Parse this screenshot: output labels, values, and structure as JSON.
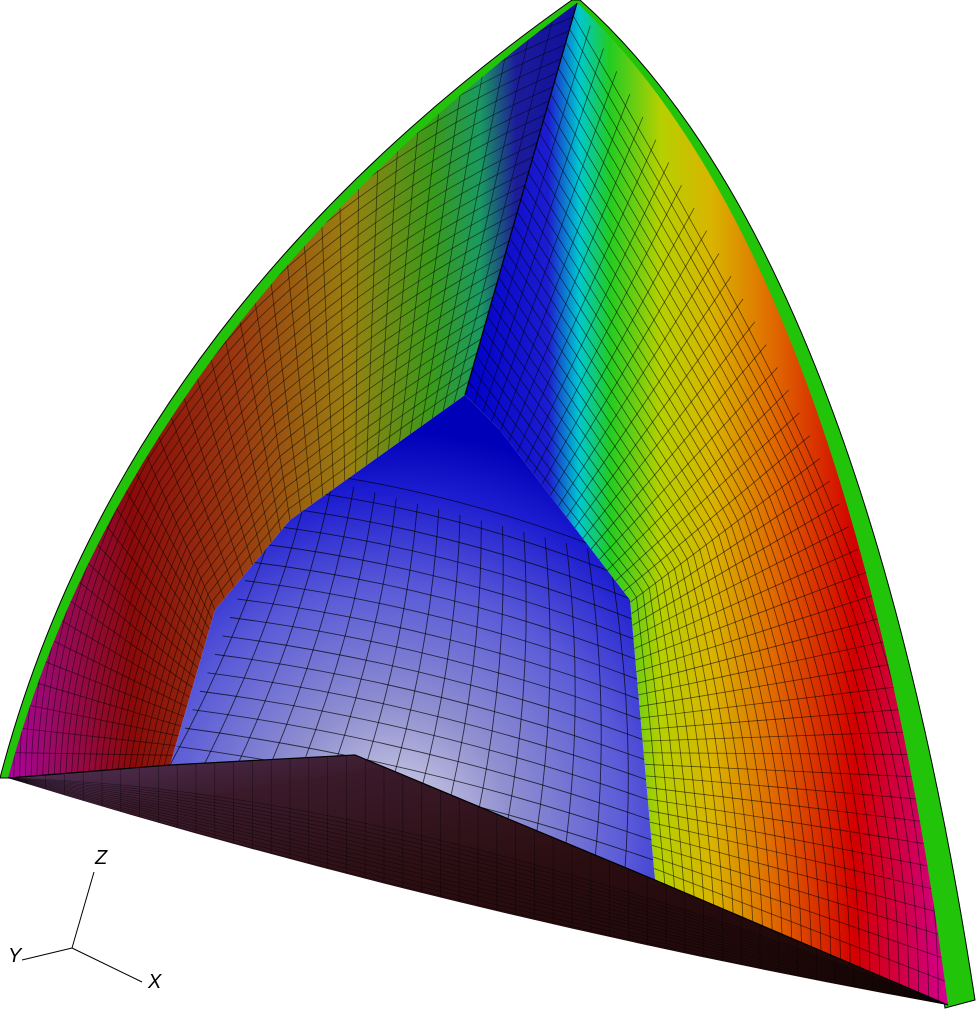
{
  "axes": {
    "x_label": "X",
    "y_label": "Y",
    "z_label": "Z"
  },
  "colors": {
    "outer_shell": "#22c40a",
    "mesh_line": "#000000",
    "bottom_face_dark": "#2a0d10",
    "core_light": "#c9c9dc",
    "core_lilac": "#8f8fd0",
    "core_blue": "#1c1cd0",
    "cyan_band": "#00c8d0",
    "green_band": "#3ad21a",
    "yellow_band": "#d0cc00",
    "orange_band": "#e06a00",
    "red_band": "#d20000",
    "magenta_band": "#d800c8"
  }
}
